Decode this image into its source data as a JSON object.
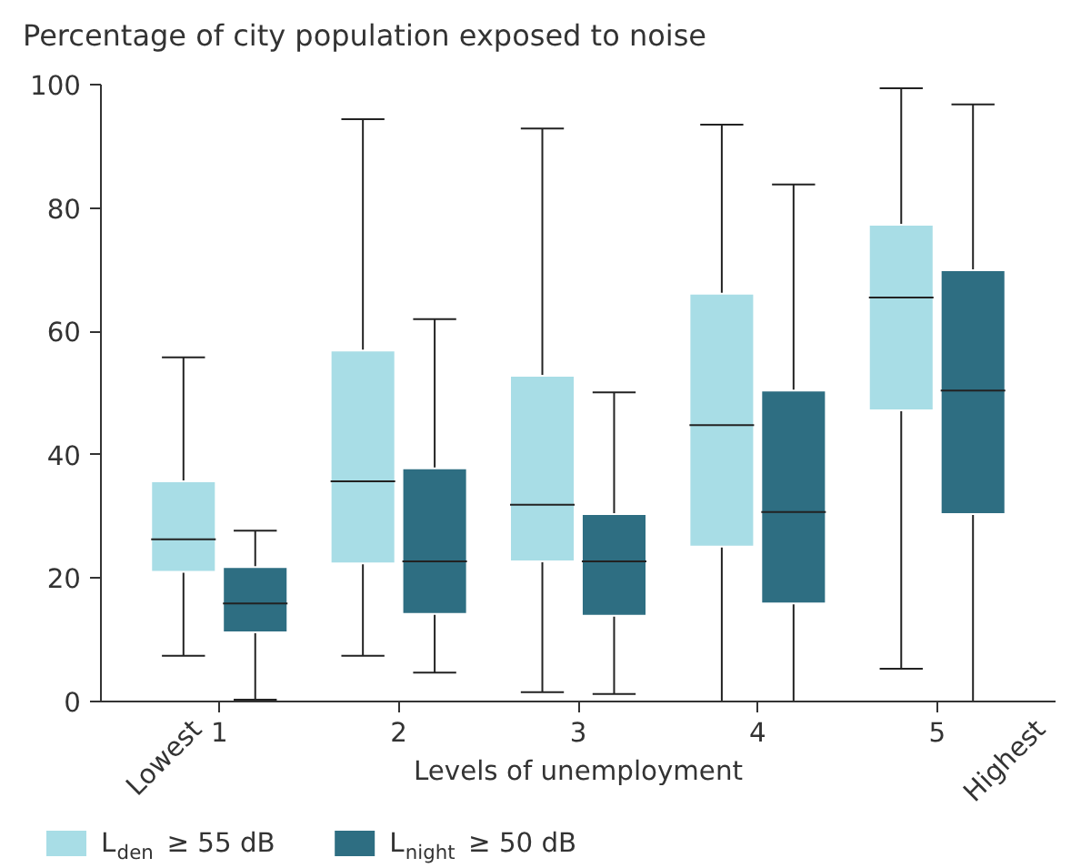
{
  "chart_data": {
    "type": "box",
    "title": "Percentage of city population exposed to noise",
    "xlabel": "Levels of unemployment",
    "categories": [
      "1",
      "2",
      "3",
      "4",
      "5"
    ],
    "annotations": [
      "Lowest",
      "Highest"
    ],
    "ylim": [
      0,
      100
    ],
    "yticks": [
      0,
      20,
      40,
      60,
      80,
      100
    ],
    "grid": false,
    "legend": "bottom",
    "series": [
      {
        "name": "L$_{den}$ ≥ 55 dB",
        "color": "#a8dde6",
        "boxes": [
          {
            "low": 7.4,
            "q1": 21,
            "median": 26.3,
            "q3": 35.7,
            "high": 55.8
          },
          {
            "low": 7.4,
            "q1": 22.4,
            "median": 35.7,
            "q3": 56.9,
            "high": 94.4
          },
          {
            "low": 1.5,
            "q1": 22.7,
            "median": 31.9,
            "q3": 52.8,
            "high": 92.9
          },
          {
            "low": 0,
            "q1": 25.1,
            "median": 44.8,
            "q3": 66.1,
            "high": 93.5
          },
          {
            "low": 5.3,
            "q1": 47.2,
            "median": 65.5,
            "q3": 77.3,
            "high": 99.4
          }
        ]
      },
      {
        "name": "L$_{night}$ ≥ 50 dB",
        "color": "#2e6e82",
        "boxes": [
          {
            "low": 0.3,
            "q1": 11.2,
            "median": 15.9,
            "q3": 21.8,
            "high": 27.7
          },
          {
            "low": 4.7,
            "q1": 14.2,
            "median": 22.7,
            "q3": 37.8,
            "high": 62
          },
          {
            "low": 1.2,
            "q1": 13.9,
            "median": 22.7,
            "q3": 30.4,
            "high": 50.1
          },
          {
            "low": 0,
            "q1": 15.9,
            "median": 30.7,
            "q3": 50.4,
            "high": 83.8
          },
          {
            "low": 0,
            "q1": 30.4,
            "median": 50.4,
            "q3": 69.9,
            "high": 96.8
          }
        ]
      }
    ]
  }
}
